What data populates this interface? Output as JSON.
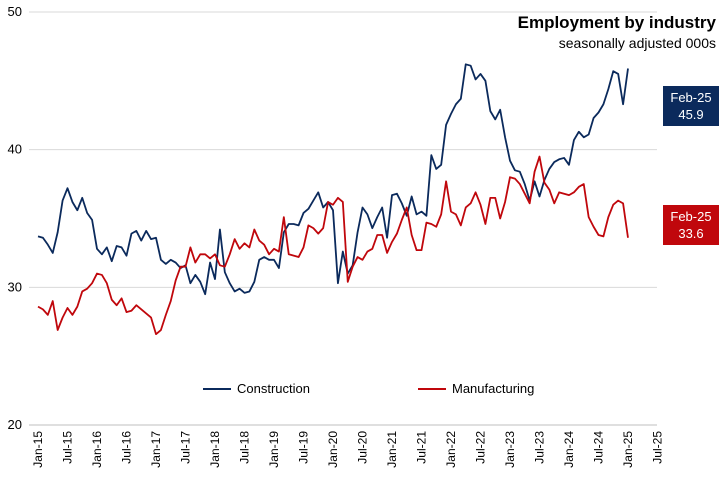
{
  "title": "Employment by industry",
  "subtitle": "seasonally adjusted 000s",
  "callouts": {
    "construction": {
      "date": "Feb-25",
      "value": "45.9"
    },
    "manufacturing": {
      "date": "Feb-25",
      "value": "33.6"
    }
  },
  "chart_data": {
    "type": "line",
    "title": "Employment by industry",
    "subtitle": "seasonally adjusted 000s",
    "ylim": [
      20,
      50
    ],
    "yticks": [
      20,
      30,
      40,
      50
    ],
    "xticks": [
      "Jan-15",
      "Jul-15",
      "Jan-16",
      "Jul-16",
      "Jan-17",
      "Jul-17",
      "Jan-18",
      "Jul-18",
      "Jan-19",
      "Jul-19",
      "Jan-20",
      "Jul-20",
      "Jan-21",
      "Jul-21",
      "Jan-22",
      "Jul-22",
      "Jan-23",
      "Jul-23",
      "Jan-24",
      "Jul-24",
      "Jan-25",
      "Jul-25"
    ],
    "x_start": "Jan-15",
    "x_end": "Feb-25",
    "frequency": "monthly",
    "grid": "horizontal",
    "legend_position": "bottom",
    "series": [
      {
        "name": "Construction",
        "color": "#0b2a5c",
        "values": [
          33.7,
          33.6,
          33.1,
          32.5,
          34.0,
          36.3,
          37.2,
          36.2,
          35.6,
          36.5,
          35.4,
          34.9,
          32.8,
          32.4,
          32.9,
          31.9,
          33.0,
          32.9,
          32.3,
          33.9,
          34.1,
          33.4,
          34.1,
          33.5,
          33.6,
          32.0,
          31.7,
          32.0,
          31.8,
          31.4,
          31.6,
          30.3,
          30.9,
          30.4,
          29.5,
          31.8,
          30.6,
          34.2,
          31.1,
          30.3,
          29.7,
          29.9,
          29.6,
          29.7,
          30.4,
          32.0,
          32.2,
          32.0,
          32.0,
          31.4,
          34.0,
          34.6,
          34.6,
          34.5,
          35.4,
          35.7,
          36.3,
          36.9,
          35.8,
          36.2,
          35.6,
          30.3,
          32.6,
          31.0,
          31.6,
          34.0,
          35.8,
          35.3,
          34.3,
          35.1,
          35.8,
          33.6,
          36.7,
          36.8,
          36.1,
          35.2,
          36.6,
          35.3,
          35.5,
          35.2,
          39.6,
          38.6,
          38.9,
          41.8,
          42.6,
          43.3,
          43.7,
          46.2,
          46.1,
          45.1,
          45.5,
          45.0,
          42.8,
          42.2,
          42.9,
          40.9,
          39.2,
          38.5,
          38.4,
          37.5,
          36.3,
          37.7,
          36.6,
          37.8,
          38.6,
          39.1,
          39.3,
          39.4,
          38.9,
          40.7,
          41.3,
          40.9,
          41.1,
          42.3,
          42.7,
          43.3,
          44.4,
          45.7,
          45.5,
          43.3,
          45.9
        ]
      },
      {
        "name": "Manufacturing",
        "color": "#c0070c",
        "values": [
          28.6,
          28.4,
          28.0,
          29.0,
          26.9,
          27.8,
          28.5,
          28.0,
          28.6,
          29.7,
          29.9,
          30.3,
          31.0,
          30.9,
          30.3,
          29.1,
          28.7,
          29.2,
          28.2,
          28.3,
          28.7,
          28.4,
          28.1,
          27.8,
          26.6,
          26.9,
          28.0,
          29.0,
          30.5,
          31.5,
          31.5,
          32.9,
          31.8,
          32.4,
          32.4,
          32.1,
          32.4,
          31.6,
          31.5,
          32.4,
          33.5,
          32.8,
          33.2,
          32.9,
          34.2,
          33.4,
          33.1,
          32.4,
          32.8,
          32.6,
          35.1,
          32.4,
          32.3,
          32.2,
          32.9,
          34.5,
          34.3,
          33.9,
          34.3,
          36.2,
          36.0,
          36.5,
          36.2,
          30.4,
          31.5,
          32.2,
          32.0,
          32.6,
          32.8,
          33.8,
          33.8,
          32.5,
          33.3,
          33.9,
          34.9,
          35.8,
          33.8,
          32.7,
          32.7,
          34.7,
          34.6,
          34.4,
          35.3,
          37.7,
          35.5,
          35.3,
          34.5,
          35.8,
          36.1,
          36.9,
          36.0,
          34.6,
          36.5,
          36.5,
          35.0,
          36.2,
          38.0,
          37.9,
          37.5,
          36.8,
          36.1,
          38.4,
          39.5,
          37.6,
          37.1,
          36.1,
          36.9,
          36.8,
          36.7,
          36.9,
          37.3,
          37.5,
          35.1,
          34.4,
          33.8,
          33.7,
          35.1,
          36.0,
          36.3,
          36.1,
          33.6
        ]
      }
    ]
  }
}
